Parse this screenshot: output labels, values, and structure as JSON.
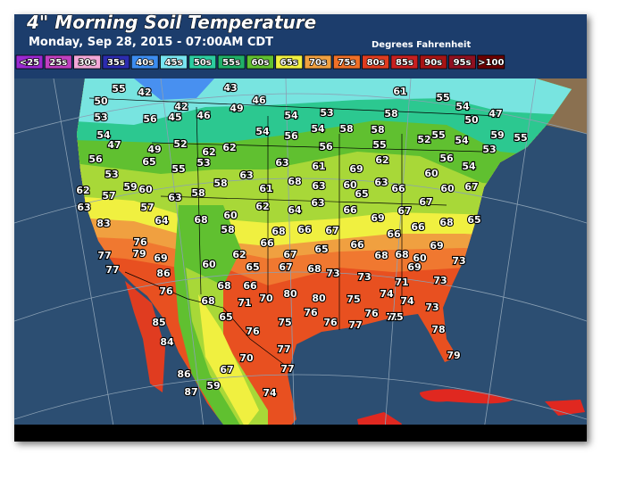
{
  "header": {
    "title": "4\" Morning Soil Temperature",
    "subtitle": "Monday, Sep 28, 2015 - 07:00AM CDT",
    "units": "Degrees Fahrenheit"
  },
  "legend": [
    {
      "label": "<25",
      "color": "#9a28d0"
    },
    {
      "label": "25s",
      "color": "#c040c0"
    },
    {
      "label": "30s",
      "color": "#f2a8d8"
    },
    {
      "label": "35s",
      "color": "#2c2cb0"
    },
    {
      "label": "40s",
      "color": "#3c8cf0"
    },
    {
      "label": "45s",
      "color": "#78e4f0"
    },
    {
      "label": "50s",
      "color": "#2ccca0"
    },
    {
      "label": "55s",
      "color": "#20b068"
    },
    {
      "label": "60s",
      "color": "#60c030"
    },
    {
      "label": "65s",
      "color": "#f0f040"
    },
    {
      "label": "70s",
      "color": "#f0a040"
    },
    {
      "label": "75s",
      "color": "#f07028"
    },
    {
      "label": "80s",
      "color": "#e03c20"
    },
    {
      "label": "85s",
      "color": "#c82020"
    },
    {
      "label": "90s",
      "color": "#a81414"
    },
    {
      "label": "95s",
      "color": "#901020"
    },
    {
      "label": ">100",
      "color": "#6c0000"
    }
  ],
  "stations": [
    55,
    42,
    43,
    50,
    53,
    46,
    49,
    42,
    45,
    46,
    56,
    54,
    53,
    61,
    55,
    54,
    58,
    50,
    47,
    54,
    47,
    52,
    62,
    62,
    54,
    56,
    54,
    58,
    58,
    55,
    54,
    59,
    55,
    52,
    56,
    55,
    49,
    65,
    53,
    55,
    56,
    63,
    62,
    56,
    53,
    61,
    69,
    53,
    54,
    60,
    63,
    68,
    58,
    59,
    60,
    62,
    57,
    61,
    63,
    60,
    63,
    66,
    60,
    67,
    63,
    58,
    65,
    63,
    67,
    63,
    62,
    64,
    66,
    67,
    68,
    69,
    57,
    64,
    68,
    60,
    58,
    83,
    66,
    65,
    68,
    66,
    67,
    66,
    66,
    76,
    66,
    65,
    69,
    77,
    79,
    69,
    67,
    68,
    68,
    60,
    62,
    60,
    86,
    65,
    67,
    73,
    77,
    68,
    73,
    69,
    73,
    73,
    76,
    68,
    66,
    71,
    80,
    74,
    68,
    71,
    70,
    80,
    75,
    74,
    73,
    76,
    76,
    76,
    78,
    65,
    85,
    75,
    77,
    75,
    78,
    84,
    76,
    77,
    70,
    79,
    67,
    77,
    86,
    59,
    87,
    74
  ]
}
